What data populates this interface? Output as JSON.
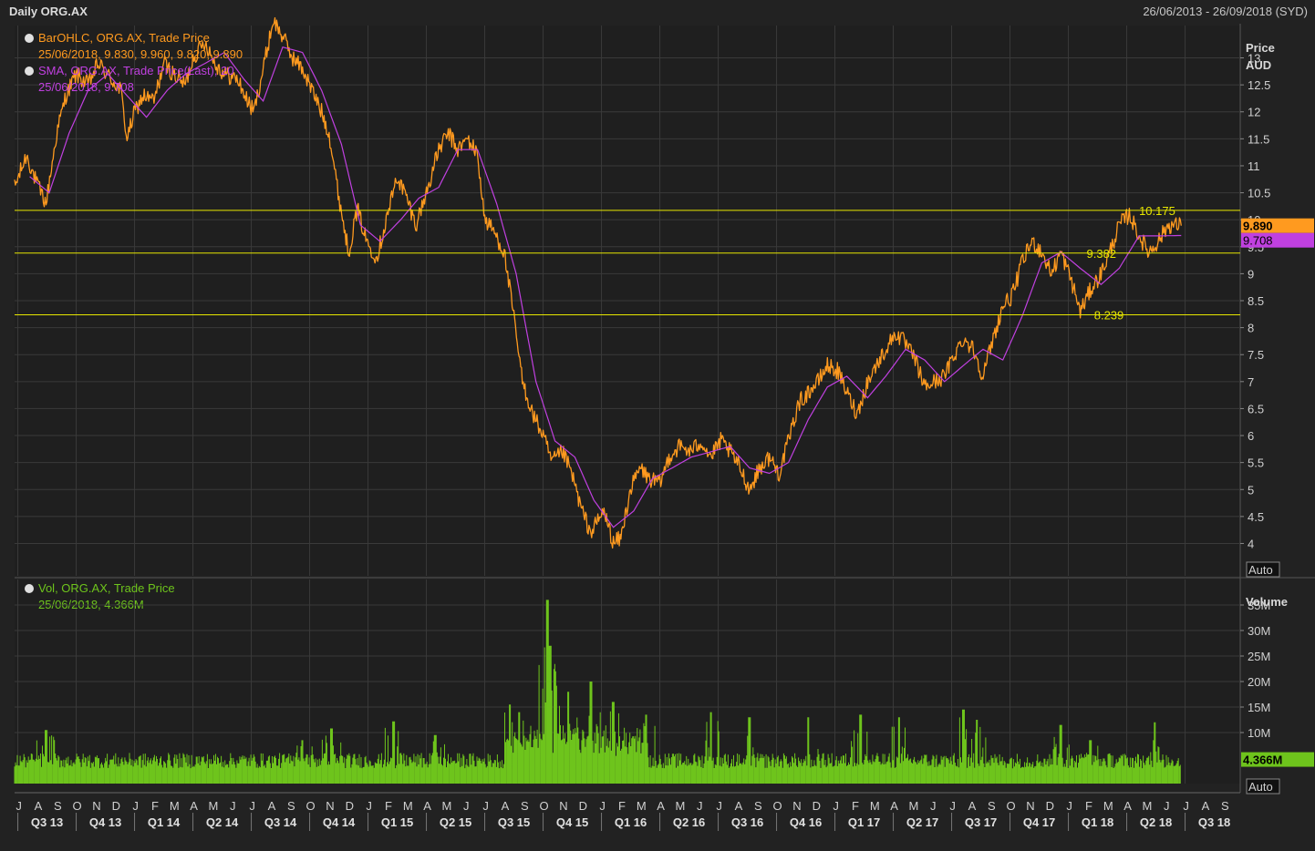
{
  "header": {
    "title": "Daily ORG.AX",
    "date_range": "26/06/2013 - 26/09/2018 (SYD)"
  },
  "colors": {
    "background": "#1f1f1f",
    "grid": "#3a3a3a",
    "price": "#ff9a1f",
    "sma": "#c040e0",
    "volume": "#6ec41c",
    "hline": "#e6e600",
    "legend_price": "#ff9a1f",
    "legend_sma": "#c040e0",
    "legend_vol": "#6ec41c"
  },
  "chart_data": [
    {
      "type": "line",
      "panel": "price",
      "legend": [
        {
          "line1": "BarOHLC, ORG.AX, Trade Price",
          "line2": "25/06/2018, 9.830, 9.960, 9.820, 9.890"
        },
        {
          "line1": "SMA, ORG.AX, Trade Price(Last),  20",
          "line2": "25/06/2018, 9.708"
        }
      ],
      "ylabel": "Price",
      "yunit": "AUD",
      "ylim": [
        3.4,
        13.6
      ],
      "yticks": [
        "4",
        "4.5",
        "5",
        "5.5",
        "6",
        "6.5",
        "7",
        "7.5",
        "8",
        "8.5",
        "9",
        "9.5",
        "10",
        "10.5",
        "11",
        "11.5",
        "12",
        "12.5",
        "13"
      ],
      "series": [
        {
          "name": "BarOHLC",
          "points": [
            [
              "2013-06-26",
              10.6
            ],
            [
              "2013-07-15",
              11.2
            ],
            [
              "2013-07-30",
              10.7
            ],
            [
              "2013-08-15",
              10.3
            ],
            [
              "2013-09-01",
              11.6
            ],
            [
              "2013-09-15",
              12.3
            ],
            [
              "2013-10-01",
              12.7
            ],
            [
              "2013-10-20",
              12.5
            ],
            [
              "2013-11-05",
              12.9
            ],
            [
              "2013-11-25",
              12.6
            ],
            [
              "2013-12-10",
              12.4
            ],
            [
              "2013-12-20",
              11.5
            ],
            [
              "2014-01-01",
              12.0
            ],
            [
              "2014-01-15",
              12.3
            ],
            [
              "2014-02-01",
              12.2
            ],
            [
              "2014-02-15",
              12.9
            ],
            [
              "2014-03-01",
              12.7
            ],
            [
              "2014-03-20",
              12.5
            ],
            [
              "2014-04-01",
              13.0
            ],
            [
              "2014-04-20",
              13.3
            ],
            [
              "2014-05-05",
              12.9
            ],
            [
              "2014-05-20",
              12.7
            ],
            [
              "2014-06-10",
              12.6
            ],
            [
              "2014-06-25",
              12.2
            ],
            [
              "2014-07-05",
              12.0
            ],
            [
              "2014-07-20",
              12.8
            ],
            [
              "2014-08-05",
              13.7
            ],
            [
              "2014-08-20",
              13.4
            ],
            [
              "2014-09-05",
              13.0
            ],
            [
              "2014-09-20",
              12.8
            ],
            [
              "2014-10-01",
              12.5
            ],
            [
              "2014-10-20",
              12.0
            ],
            [
              "2014-11-01",
              11.6
            ],
            [
              "2014-11-15",
              10.5
            ],
            [
              "2014-12-01",
              9.4
            ],
            [
              "2014-12-15",
              10.2
            ],
            [
              "2014-12-30",
              9.6
            ],
            [
              "2015-01-15",
              9.3
            ],
            [
              "2015-01-30",
              10.0
            ],
            [
              "2015-02-15",
              10.8
            ],
            [
              "2015-03-01",
              10.4
            ],
            [
              "2015-03-15",
              9.9
            ],
            [
              "2015-04-01",
              10.5
            ],
            [
              "2015-04-20",
              11.3
            ],
            [
              "2015-05-05",
              11.6
            ],
            [
              "2015-05-20",
              11.3
            ],
            [
              "2015-06-05",
              11.5
            ],
            [
              "2015-06-20",
              11.2
            ],
            [
              "2015-07-01",
              10.0
            ],
            [
              "2015-07-15",
              9.8
            ],
            [
              "2015-08-01",
              9.4
            ],
            [
              "2015-08-15",
              8.3
            ],
            [
              "2015-08-30",
              7.0
            ],
            [
              "2015-09-15",
              6.4
            ],
            [
              "2015-10-01",
              6.0
            ],
            [
              "2015-10-15",
              5.5
            ],
            [
              "2015-11-01",
              5.7
            ],
            [
              "2015-11-15",
              5.3
            ],
            [
              "2015-12-01",
              4.6
            ],
            [
              "2015-12-15",
              4.2
            ],
            [
              "2016-01-05",
              4.6
            ],
            [
              "2016-01-20",
              4.0
            ],
            [
              "2016-02-01",
              4.1
            ],
            [
              "2016-02-15",
              5.0
            ],
            [
              "2016-03-01",
              5.4
            ],
            [
              "2016-03-15",
              5.2
            ],
            [
              "2016-04-01",
              5.1
            ],
            [
              "2016-04-15",
              5.6
            ],
            [
              "2016-05-01",
              5.8
            ],
            [
              "2016-05-20",
              5.7
            ],
            [
              "2016-06-05",
              5.9
            ],
            [
              "2016-06-20",
              5.6
            ],
            [
              "2016-07-05",
              5.9
            ],
            [
              "2016-07-20",
              5.7
            ],
            [
              "2016-08-05",
              5.4
            ],
            [
              "2016-08-20",
              5.0
            ],
            [
              "2016-09-05",
              5.4
            ],
            [
              "2016-09-20",
              5.6
            ],
            [
              "2016-10-05",
              5.3
            ],
            [
              "2016-10-20",
              5.9
            ],
            [
              "2016-11-05",
              6.6
            ],
            [
              "2016-11-20",
              6.8
            ],
            [
              "2016-12-05",
              7.0
            ],
            [
              "2016-12-20",
              7.3
            ],
            [
              "2017-01-05",
              7.2
            ],
            [
              "2017-01-20",
              6.8
            ],
            [
              "2017-02-05",
              6.4
            ],
            [
              "2017-02-20",
              7.0
            ],
            [
              "2017-03-05",
              7.3
            ],
            [
              "2017-03-20",
              7.6
            ],
            [
              "2017-04-05",
              7.9
            ],
            [
              "2017-04-20",
              7.7
            ],
            [
              "2017-05-05",
              7.4
            ],
            [
              "2017-05-20",
              6.9
            ],
            [
              "2017-06-05",
              7.0
            ],
            [
              "2017-06-20",
              7.1
            ],
            [
              "2017-07-05",
              7.5
            ],
            [
              "2017-07-20",
              7.8
            ],
            [
              "2017-08-05",
              7.6
            ],
            [
              "2017-08-20",
              7.1
            ],
            [
              "2017-09-05",
              7.8
            ],
            [
              "2017-09-20",
              8.4
            ],
            [
              "2017-10-05",
              8.6
            ],
            [
              "2017-10-20",
              9.2
            ],
            [
              "2017-11-05",
              9.6
            ],
            [
              "2017-11-20",
              9.4
            ],
            [
              "2017-12-05",
              9.0
            ],
            [
              "2017-12-20",
              9.4
            ],
            [
              "2018-01-05",
              8.9
            ],
            [
              "2018-01-20",
              8.3
            ],
            [
              "2018-02-05",
              8.7
            ],
            [
              "2018-02-20",
              9.0
            ],
            [
              "2018-03-05",
              9.4
            ],
            [
              "2018-03-20",
              9.9
            ],
            [
              "2018-04-05",
              10.1
            ],
            [
              "2018-04-20",
              9.7
            ],
            [
              "2018-05-05",
              9.4
            ],
            [
              "2018-05-20",
              9.6
            ],
            [
              "2018-06-05",
              9.9
            ],
            [
              "2018-06-25",
              9.89
            ]
          ]
        },
        {
          "name": "SMA",
          "points": [
            [
              "2013-07-20",
              10.8
            ],
            [
              "2013-08-20",
              10.5
            ],
            [
              "2013-09-20",
              11.6
            ],
            [
              "2013-10-20",
              12.4
            ],
            [
              "2013-11-20",
              12.7
            ],
            [
              "2013-12-20",
              12.3
            ],
            [
              "2014-01-20",
              11.9
            ],
            [
              "2014-02-20",
              12.4
            ],
            [
              "2014-03-20",
              12.7
            ],
            [
              "2014-04-20",
              12.9
            ],
            [
              "2014-05-20",
              13.1
            ],
            [
              "2014-06-20",
              12.6
            ],
            [
              "2014-07-20",
              12.2
            ],
            [
              "2014-08-20",
              13.2
            ],
            [
              "2014-09-20",
              13.1
            ],
            [
              "2014-10-20",
              12.4
            ],
            [
              "2014-11-20",
              11.4
            ],
            [
              "2014-12-20",
              9.9
            ],
            [
              "2015-01-20",
              9.6
            ],
            [
              "2015-02-20",
              10.0
            ],
            [
              "2015-03-20",
              10.4
            ],
            [
              "2015-04-20",
              10.6
            ],
            [
              "2015-05-20",
              11.3
            ],
            [
              "2015-06-20",
              11.3
            ],
            [
              "2015-07-20",
              10.3
            ],
            [
              "2015-08-20",
              9.0
            ],
            [
              "2015-09-20",
              7.0
            ],
            [
              "2015-10-20",
              5.9
            ],
            [
              "2015-11-20",
              5.6
            ],
            [
              "2015-12-20",
              4.8
            ],
            [
              "2016-01-20",
              4.3
            ],
            [
              "2016-02-20",
              4.6
            ],
            [
              "2016-03-20",
              5.2
            ],
            [
              "2016-04-20",
              5.4
            ],
            [
              "2016-05-20",
              5.6
            ],
            [
              "2016-06-20",
              5.7
            ],
            [
              "2016-07-20",
              5.8
            ],
            [
              "2016-08-20",
              5.4
            ],
            [
              "2016-09-20",
              5.3
            ],
            [
              "2016-10-20",
              5.5
            ],
            [
              "2016-11-20",
              6.3
            ],
            [
              "2016-12-20",
              6.9
            ],
            [
              "2017-01-20",
              7.1
            ],
            [
              "2017-02-20",
              6.7
            ],
            [
              "2017-03-20",
              7.1
            ],
            [
              "2017-04-20",
              7.6
            ],
            [
              "2017-05-20",
              7.4
            ],
            [
              "2017-06-20",
              7.0
            ],
            [
              "2017-07-20",
              7.3
            ],
            [
              "2017-08-20",
              7.6
            ],
            [
              "2017-09-20",
              7.4
            ],
            [
              "2017-10-20",
              8.2
            ],
            [
              "2017-11-20",
              9.2
            ],
            [
              "2017-12-20",
              9.4
            ],
            [
              "2018-01-20",
              9.1
            ],
            [
              "2018-02-20",
              8.8
            ],
            [
              "2018-03-20",
              9.1
            ],
            [
              "2018-04-20",
              9.7
            ],
            [
              "2018-05-20",
              9.7
            ],
            [
              "2018-06-25",
              9.708
            ]
          ]
        }
      ],
      "hlines": [
        {
          "value": 10.175,
          "label": "10.175",
          "label_date": "2018-04-20"
        },
        {
          "value": 9.382,
          "label": "9.382",
          "label_date": "2018-01-30"
        },
        {
          "value": 8.239,
          "label": "8.239",
          "label_date": "2018-02-10"
        }
      ],
      "last_labels": [
        {
          "value": 9.89,
          "label": "9.890",
          "color": "#ff9a1f"
        },
        {
          "value": 9.708,
          "label": "9.708",
          "color": "#c040e0"
        }
      ],
      "auto_label": "Auto"
    },
    {
      "type": "bar",
      "panel": "volume",
      "legend": [
        {
          "line1": "Vol, ORG.AX, Trade Price",
          "line2": "25/06/2018, 4.366M"
        }
      ],
      "ylabel": "Volume",
      "ylim": [
        0,
        40
      ],
      "yticks": [
        "10M",
        "15M",
        "20M",
        "25M",
        "30M",
        "35M"
      ],
      "baseline_range": [
        "2013-06-26",
        "2018-06-25"
      ],
      "typical_range_millions": [
        3,
        6
      ],
      "spikes": [
        [
          "2013-08-15",
          10.5
        ],
        [
          "2014-09-20",
          8.5
        ],
        [
          "2014-11-05",
          10.8
        ],
        [
          "2015-02-10",
          12.2
        ],
        [
          "2015-04-15",
          9.5
        ],
        [
          "2015-08-10",
          15.5
        ],
        [
          "2015-08-25",
          14.0
        ],
        [
          "2015-10-08",
          36.0
        ],
        [
          "2015-10-12",
          27.0
        ],
        [
          "2015-10-20",
          22.0
        ],
        [
          "2015-11-10",
          18.0
        ],
        [
          "2015-12-15",
          20.0
        ],
        [
          "2016-01-20",
          16.0
        ],
        [
          "2016-03-10",
          13.5
        ],
        [
          "2016-06-20",
          14.0
        ],
        [
          "2016-08-20",
          13.0
        ],
        [
          "2016-11-20",
          13.0
        ],
        [
          "2017-02-10",
          13.5
        ],
        [
          "2017-04-10",
          13.0
        ],
        [
          "2017-07-20",
          14.5
        ],
        [
          "2017-08-10",
          12.5
        ],
        [
          "2017-12-20",
          11.5
        ],
        [
          "2018-02-05",
          8.5
        ],
        [
          "2018-05-15",
          12.0
        ]
      ],
      "last_value": 4.366,
      "last_label": "4.366M",
      "auto_label": "Auto"
    }
  ],
  "x_axis": {
    "months": [
      "J",
      "A",
      "S",
      "O",
      "N",
      "D",
      "J",
      "F",
      "M",
      "A",
      "M",
      "J",
      "J",
      "A",
      "S",
      "O",
      "N",
      "D",
      "J",
      "F",
      "M",
      "A",
      "M",
      "J",
      "J",
      "A",
      "S",
      "O",
      "N",
      "D",
      "J",
      "F",
      "M",
      "A",
      "M",
      "J",
      "J",
      "A",
      "S",
      "O",
      "N",
      "D",
      "J",
      "F",
      "M",
      "A",
      "M",
      "J",
      "J",
      "A",
      "S",
      "O",
      "N",
      "D",
      "J",
      "F",
      "M",
      "A",
      "M",
      "J",
      "J",
      "A",
      "S"
    ],
    "quarters": [
      "Q3 13",
      "Q4 13",
      "Q1 14",
      "Q2 14",
      "Q3 14",
      "Q4 14",
      "Q1 15",
      "Q2 15",
      "Q3 15",
      "Q4 15",
      "Q1 16",
      "Q2 16",
      "Q3 16",
      "Q4 16",
      "Q1 17",
      "Q2 17",
      "Q3 17",
      "Q4 17",
      "Q1 18",
      "Q2 18",
      "Q3 18"
    ],
    "start_month": "2013-07",
    "end_date": "2018-09-26"
  }
}
